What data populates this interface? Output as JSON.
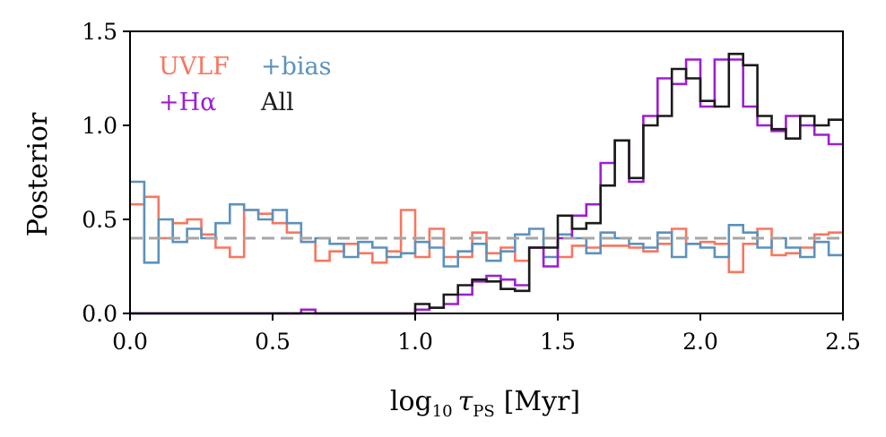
{
  "chart_data": {
    "type": "step",
    "title": "",
    "xlabel": {
      "prefix": "log",
      "sub1": "10",
      "symbol": "τ",
      "sub2": "PS",
      "unit": "[Myr]"
    },
    "ylabel": "Posterior",
    "xlim": [
      0.0,
      2.5
    ],
    "ylim": [
      0.0,
      1.5
    ],
    "xticks": [
      "0.0",
      "0.5",
      "1.0",
      "1.5",
      "2.0",
      "2.5"
    ],
    "yticks": [
      "0.0",
      "0.5",
      "1.0",
      "1.5"
    ],
    "reference_line": {
      "y": 0.4,
      "color": "#a6a6a6",
      "style": "dashed"
    },
    "bin_edges_start": 0.0,
    "bin_width": 0.05,
    "legend": [
      {
        "label": "UVLF",
        "color": "#f8765f",
        "series": "UVLF"
      },
      {
        "label": "+bias",
        "color": "#5b92bd",
        "series": "+bias"
      },
      {
        "label": "+Hα",
        "color": "#9c1fd1",
        "series": "+Hα"
      },
      {
        "label": "All",
        "color": "#1a1a1a",
        "series": "All"
      }
    ],
    "series": [
      {
        "name": "UVLF",
        "color": "#f8765f",
        "values": [
          0.58,
          0.62,
          0.4,
          0.48,
          0.5,
          0.42,
          0.35,
          0.3,
          0.55,
          0.53,
          0.48,
          0.43,
          0.38,
          0.28,
          0.33,
          0.37,
          0.32,
          0.27,
          0.33,
          0.55,
          0.3,
          0.45,
          0.3,
          0.3,
          0.43,
          0.32,
          0.35,
          0.28,
          0.35,
          0.4,
          0.3,
          0.36,
          0.35,
          0.36,
          0.36,
          0.35,
          0.33,
          0.37,
          0.45,
          0.37,
          0.38,
          0.37,
          0.22,
          0.37,
          0.45,
          0.31,
          0.32,
          0.35,
          0.42,
          0.43
        ]
      },
      {
        "name": "+bias",
        "color": "#5b92bd",
        "values": [
          0.7,
          0.27,
          0.5,
          0.38,
          0.45,
          0.4,
          0.48,
          0.58,
          0.55,
          0.5,
          0.55,
          0.48,
          0.38,
          0.4,
          0.37,
          0.3,
          0.38,
          0.35,
          0.3,
          0.32,
          0.38,
          0.35,
          0.25,
          0.33,
          0.37,
          0.28,
          0.33,
          0.42,
          0.45,
          0.3,
          0.42,
          0.4,
          0.32,
          0.43,
          0.4,
          0.37,
          0.35,
          0.43,
          0.3,
          0.37,
          0.35,
          0.3,
          0.47,
          0.43,
          0.35,
          0.4,
          0.35,
          0.3,
          0.38,
          0.31
        ]
      },
      {
        "name": "+Hα",
        "color": "#9c1fd1",
        "values": [
          0.0,
          0.0,
          0.0,
          0.0,
          0.0,
          0.0,
          0.0,
          0.0,
          0.0,
          0.0,
          0.0,
          0.0,
          0.02,
          0.0,
          0.0,
          0.0,
          0.0,
          0.0,
          0.0,
          0.0,
          0.02,
          0.03,
          0.05,
          0.1,
          0.17,
          0.2,
          0.18,
          0.15,
          0.35,
          0.25,
          0.4,
          0.52,
          0.58,
          0.8,
          0.92,
          0.7,
          1.05,
          1.25,
          1.22,
          1.35,
          1.1,
          1.35,
          1.35,
          1.1,
          1.0,
          0.97,
          1.05,
          1.0,
          0.95,
          0.9
        ]
      },
      {
        "name": "All",
        "color": "#1a1a1a",
        "values": [
          0.0,
          0.0,
          0.0,
          0.0,
          0.0,
          0.0,
          0.0,
          0.0,
          0.0,
          0.0,
          0.0,
          0.0,
          0.0,
          0.0,
          0.0,
          0.0,
          0.0,
          0.0,
          0.0,
          0.0,
          0.05,
          0.03,
          0.1,
          0.15,
          0.18,
          0.17,
          0.13,
          0.12,
          0.35,
          0.35,
          0.52,
          0.45,
          0.48,
          0.68,
          0.92,
          0.72,
          1.0,
          1.05,
          1.3,
          1.25,
          1.13,
          1.1,
          1.38,
          1.32,
          1.05,
          0.98,
          0.93,
          1.05,
          1.0,
          1.03
        ]
      }
    ]
  }
}
